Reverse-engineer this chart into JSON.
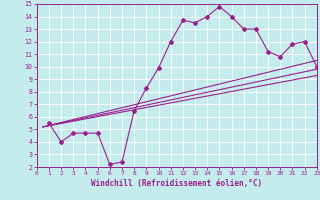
{
  "xlabel": "Windchill (Refroidissement éolien,°C)",
  "xlim": [
    0,
    23
  ],
  "ylim": [
    2,
    15
  ],
  "xticks": [
    0,
    1,
    2,
    3,
    4,
    5,
    6,
    7,
    8,
    9,
    10,
    11,
    12,
    13,
    14,
    15,
    16,
    17,
    18,
    19,
    20,
    21,
    22,
    23
  ],
  "yticks": [
    2,
    3,
    4,
    5,
    6,
    7,
    8,
    9,
    10,
    11,
    12,
    13,
    14,
    15
  ],
  "bg_color": "#c5eced",
  "line_color": "#9b1f8e",
  "grid_color": "#aad8da",
  "curve1_x": [
    1,
    2,
    3,
    4,
    5,
    6,
    7,
    8,
    9,
    10,
    11,
    12,
    13,
    14,
    15,
    16,
    17,
    18,
    19,
    20,
    21,
    22,
    23
  ],
  "curve1_y": [
    5.5,
    4.0,
    4.7,
    4.7,
    4.7,
    2.2,
    2.4,
    6.5,
    8.3,
    9.9,
    12.0,
    13.7,
    13.5,
    14.0,
    14.8,
    14.0,
    13.0,
    13.0,
    11.2,
    10.8,
    11.8,
    12.0,
    10.0
  ],
  "line2_x": [
    0.5,
    23
  ],
  "line2_y": [
    5.2,
    10.5
  ],
  "line3_x": [
    0.5,
    23
  ],
  "line3_y": [
    5.2,
    9.8
  ],
  "line4_x": [
    0.5,
    23
  ],
  "line4_y": [
    5.2,
    9.3
  ]
}
